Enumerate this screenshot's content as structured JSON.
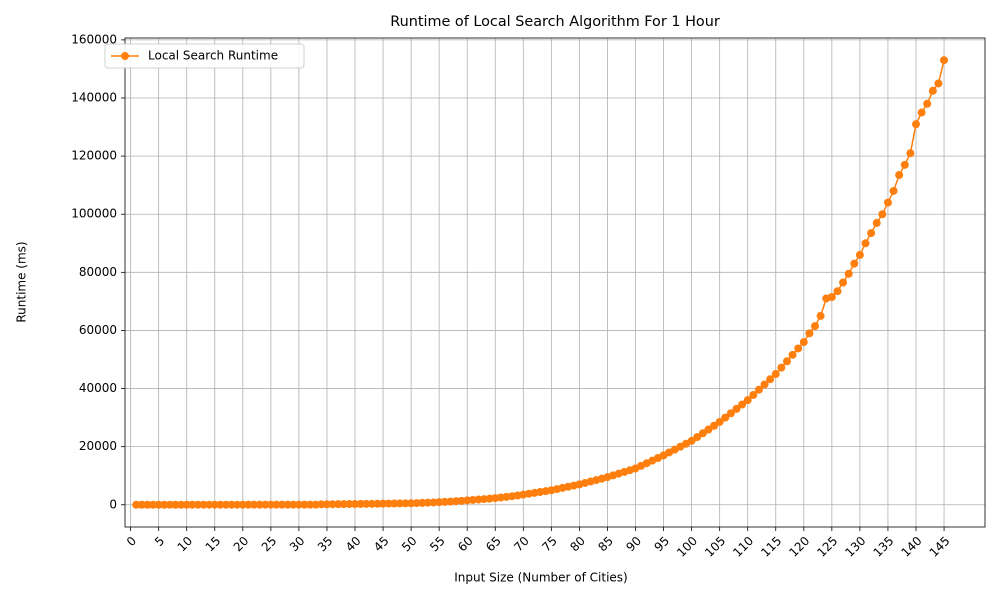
{
  "chart_data": {
    "type": "line",
    "title": "Runtime of Local Search Algorithm For 1 Hour",
    "x_label": "Input Size (Number of Cities)",
    "y_label": "Runtime (ms)",
    "x": [
      1,
      2,
      3,
      4,
      5,
      6,
      7,
      8,
      9,
      10,
      11,
      12,
      13,
      14,
      15,
      16,
      17,
      18,
      19,
      20,
      21,
      22,
      23,
      24,
      25,
      26,
      27,
      28,
      29,
      30,
      31,
      32,
      33,
      34,
      35,
      36,
      37,
      38,
      39,
      40,
      41,
      42,
      43,
      44,
      45,
      46,
      47,
      48,
      49,
      50,
      51,
      52,
      53,
      54,
      55,
      56,
      57,
      58,
      59,
      60,
      61,
      62,
      63,
      64,
      65,
      66,
      67,
      68,
      69,
      70,
      71,
      72,
      73,
      74,
      75,
      76,
      77,
      78,
      79,
      80,
      81,
      82,
      83,
      84,
      85,
      86,
      87,
      88,
      89,
      90,
      91,
      92,
      93,
      94,
      95,
      96,
      97,
      98,
      99,
      100,
      101,
      102,
      103,
      104,
      105,
      106,
      107,
      108,
      109,
      110,
      111,
      112,
      113,
      114,
      115,
      116,
      117,
      118,
      119,
      120,
      121,
      122,
      123,
      124,
      125,
      126,
      127,
      128,
      129,
      130,
      131,
      132,
      133,
      134,
      135,
      136,
      137,
      138,
      139,
      140,
      141,
      142,
      143,
      144,
      145
    ],
    "series": [
      {
        "name": "Local Search Runtime",
        "color": "#ff7f0e",
        "values": [
          10,
          10,
          10,
          10,
          10,
          10,
          10,
          10,
          10,
          10,
          20,
          20,
          20,
          20,
          20,
          20,
          20,
          20,
          20,
          20,
          40,
          40,
          40,
          40,
          40,
          40,
          40,
          40,
          40,
          40,
          40,
          40,
          40,
          150,
          170,
          190,
          210,
          230,
          250,
          270,
          290,
          310,
          330,
          350,
          380,
          410,
          440,
          470,
          500,
          520,
          580,
          650,
          720,
          800,
          900,
          1000,
          1100,
          1220,
          1350,
          1500,
          1650,
          1800,
          1950,
          2100,
          2300,
          2500,
          2700,
          2950,
          3200,
          3500,
          3800,
          4100,
          4400,
          4700,
          5000,
          5400,
          5800,
          6200,
          6600,
          7000,
          7500,
          8000,
          8500,
          9000,
          9500,
          10100,
          10700,
          11300,
          11900,
          12500,
          13400,
          14300,
          15200,
          16100,
          17000,
          18000,
          19000,
          20000,
          21000,
          22000,
          23300,
          24600,
          25900,
          27200,
          28500,
          30000,
          31500,
          33000,
          34500,
          36000,
          37800,
          39600,
          41400,
          43200,
          45000,
          47200,
          49400,
          51600,
          53800,
          56000,
          59000,
          61500,
          65000,
          71000,
          71500,
          73500,
          76500,
          79500,
          83000,
          86000,
          90000,
          93500,
          97000,
          100000,
          104000,
          108000,
          113500,
          117000,
          121000,
          131000,
          135000,
          138000,
          142500,
          145000,
          153000
        ]
      }
    ],
    "xlim": [
      -1,
      152.3
    ],
    "ylim": [
      -7650,
      160650
    ],
    "xticks": [
      0,
      5,
      10,
      15,
      20,
      25,
      30,
      35,
      40,
      45,
      50,
      55,
      60,
      65,
      70,
      75,
      80,
      85,
      90,
      95,
      100,
      105,
      110,
      115,
      120,
      125,
      130,
      135,
      140,
      145
    ],
    "yticks": [
      0,
      20000,
      40000,
      60000,
      80000,
      100000,
      120000,
      140000,
      160000
    ],
    "grid": true,
    "legend": "upper left"
  }
}
